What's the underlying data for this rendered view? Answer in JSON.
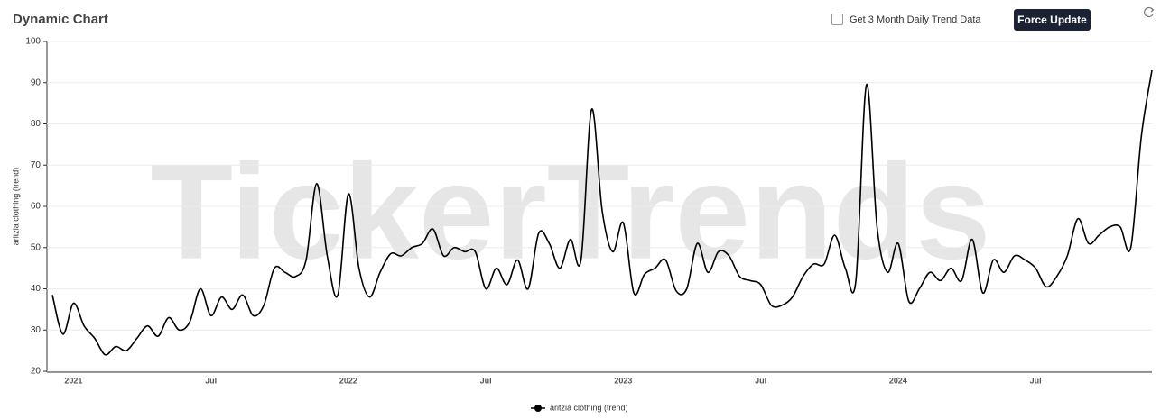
{
  "header": {
    "title": "Dynamic Chart",
    "checkbox_label": "Get 3 Month Daily Trend Data",
    "button": "Force Update"
  },
  "chart_data": {
    "type": "line",
    "watermark": "TickerTrends",
    "y_label": "aritzia clothing  (trend)",
    "categories": [
      null,
      null,
      "2021",
      null,
      null,
      null,
      null,
      null,
      null,
      null,
      null,
      null,
      null,
      null,
      null,
      "Jul",
      null,
      null,
      null,
      null,
      null,
      null,
      null,
      null,
      null,
      null,
      null,
      null,
      "2022",
      null,
      null,
      null,
      null,
      null,
      null,
      null,
      null,
      null,
      null,
      null,
      null,
      "Jul",
      null,
      null,
      null,
      null,
      null,
      null,
      null,
      null,
      null,
      null,
      null,
      null,
      "2023",
      null,
      null,
      null,
      null,
      null,
      null,
      null,
      null,
      null,
      null,
      null,
      null,
      "Jul",
      null,
      null,
      null,
      null,
      null,
      null,
      null,
      null,
      null,
      null,
      null,
      null,
      "2024",
      null,
      null,
      null,
      null,
      null,
      null,
      null,
      null,
      null,
      null,
      null,
      null,
      "Jul",
      null,
      null,
      null,
      null,
      null,
      null,
      null,
      null,
      null,
      null,
      null
    ],
    "series": [
      {
        "name": "aritzia clothing  (trend)",
        "color": "#000000",
        "values": [
          38.5,
          29,
          36.5,
          31,
          28,
          24,
          26,
          25,
          28,
          31,
          28.5,
          33,
          30,
          32,
          40,
          33.5,
          38,
          35,
          38.5,
          33.5,
          36,
          45,
          44,
          43,
          47,
          65.5,
          48,
          38.5,
          63,
          45,
          38,
          44,
          48.5,
          48,
          50,
          51,
          54.5,
          48,
          50,
          49,
          49,
          40,
          45,
          41,
          47,
          40,
          53.5,
          51,
          45,
          52,
          47,
          83.5,
          59,
          49,
          56,
          39,
          43.5,
          45,
          47,
          39.5,
          40,
          51,
          44,
          49,
          48,
          43,
          42,
          41,
          36,
          36,
          38,
          43,
          46,
          46,
          53,
          45,
          42,
          89.5,
          55,
          44,
          51,
          37,
          40,
          44,
          42,
          45,
          42,
          52,
          39,
          47,
          44,
          48,
          47,
          45,
          40.5,
          43,
          48,
          57,
          51,
          53,
          55,
          55,
          50,
          77,
          93
        ]
      }
    ],
    "ylim": [
      20,
      100
    ],
    "yticks": [
      20,
      30,
      40,
      50,
      60,
      70,
      80,
      90,
      100
    ],
    "grid": true
  }
}
